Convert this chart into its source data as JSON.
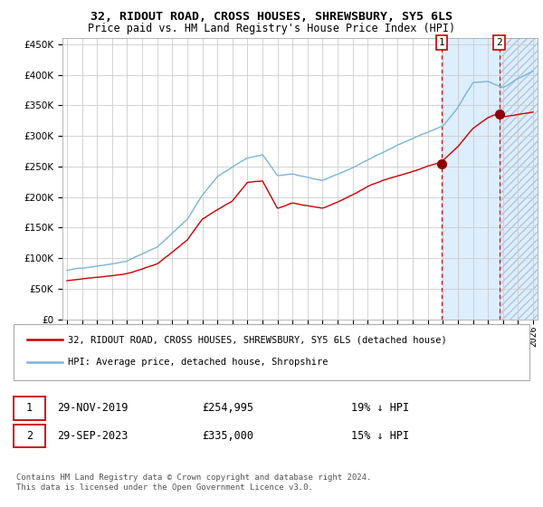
{
  "title": "32, RIDOUT ROAD, CROSS HOUSES, SHREWSBURY, SY5 6LS",
  "subtitle": "Price paid vs. HM Land Registry's House Price Index (HPI)",
  "legend_line1": "32, RIDOUT ROAD, CROSS HOUSES, SHREWSBURY, SY5 6LS (detached house)",
  "legend_line2": "HPI: Average price, detached house, Shropshire",
  "sale1_date": "29-NOV-2019",
  "sale1_price": 254995,
  "sale1_price_str": "£254,995",
  "sale1_hpi_pct": "19% ↓ HPI",
  "sale2_date": "29-SEP-2023",
  "sale2_price": 335000,
  "sale2_price_str": "£335,000",
  "sale2_hpi_pct": "15% ↓ HPI",
  "footer1": "Contains HM Land Registry data © Crown copyright and database right 2024.",
  "footer2": "This data is licensed under the Open Government Licence v3.0.",
  "hpi_color": "#7ab5d8",
  "price_color": "#cc0000",
  "marker_color": "#8b0000",
  "bg_color": "#ffffff",
  "grid_color": "#cccccc",
  "highlight_color": "#ddeeff",
  "ylim_max": 460000,
  "ylabel_step": 50000,
  "x_start_year": 1995,
  "x_end_year": 2026,
  "sale1_year": 2019.91,
  "sale2_year": 2023.75,
  "hpi_anchors_x": [
    1995,
    1997,
    1999,
    2001,
    2003,
    2004,
    2005,
    2007,
    2008,
    2009,
    2010,
    2011,
    2012,
    2013,
    2014,
    2015,
    2016,
    2017,
    2018,
    2019,
    2020,
    2021,
    2022,
    2023,
    2024,
    2025,
    2026
  ],
  "hpi_anchors_y": [
    80000,
    88000,
    97000,
    120000,
    165000,
    205000,
    235000,
    265000,
    270000,
    235000,
    238000,
    232000,
    228000,
    238000,
    248000,
    260000,
    272000,
    285000,
    295000,
    305000,
    315000,
    345000,
    385000,
    388000,
    378000,
    393000,
    405000
  ],
  "price_anchors_x": [
    1995,
    1997,
    1999,
    2001,
    2003,
    2004,
    2006,
    2007,
    2008,
    2009,
    2010,
    2011,
    2012,
    2013,
    2014,
    2015,
    2016,
    2017,
    2018,
    2019,
    2019.91,
    2020,
    2021,
    2022,
    2023,
    2023.75,
    2024,
    2025,
    2026
  ],
  "price_anchors_y": [
    63000,
    70000,
    76000,
    92000,
    130000,
    165000,
    195000,
    225000,
    228000,
    183000,
    192000,
    188000,
    183000,
    193000,
    205000,
    218000,
    228000,
    235000,
    242000,
    250000,
    254995,
    258000,
    280000,
    310000,
    328000,
    335000,
    328000,
    333000,
    337000
  ]
}
